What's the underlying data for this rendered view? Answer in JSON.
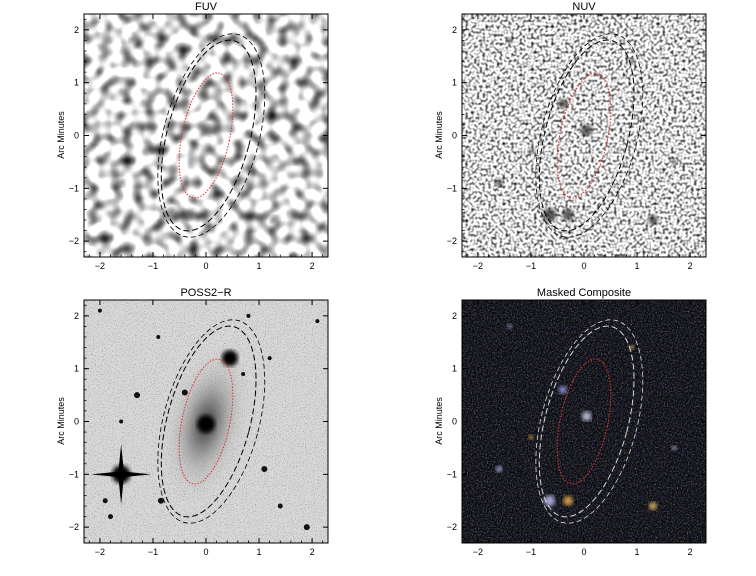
{
  "figure": {
    "panels": [
      {
        "id": "fuv",
        "title": "FUV",
        "ylabel": "Arc Minutes",
        "style": "noise-coarse"
      },
      {
        "id": "nuv",
        "title": "NUV",
        "ylabel": "Arc Minutes",
        "style": "noise-fine"
      },
      {
        "id": "poss",
        "title": "POSS2−R",
        "ylabel": "Arc Minutes",
        "style": "optical"
      },
      {
        "id": "comp",
        "title": "Masked Composite",
        "ylabel": "Arc Minutes",
        "style": "composite"
      }
    ],
    "axis_range": [
      -2.3,
      2.3
    ],
    "x_ticks": [
      -2,
      -1,
      0,
      1,
      2
    ],
    "y_ticks": [
      -2,
      -1,
      0,
      1,
      2
    ],
    "ellipses": {
      "outer": {
        "center": [
          0.05,
          0.0
        ],
        "semi_major_arcmin": 1.85,
        "semi_minor_arcmin": 0.78,
        "tilt_deg": -15,
        "color": "#000000",
        "style": "dashed"
      },
      "inner": {
        "center": [
          0.0,
          0.0
        ],
        "semi_major_arcmin": 1.2,
        "semi_minor_arcmin": 0.45,
        "tilt_deg": -12,
        "color": "#e03030",
        "style": "dotted"
      }
    },
    "colors": {
      "composite_background": "#0a0a0a",
      "composite_ellipse": "#d8d8d8",
      "inner_ellipse": "#e03030"
    }
  }
}
